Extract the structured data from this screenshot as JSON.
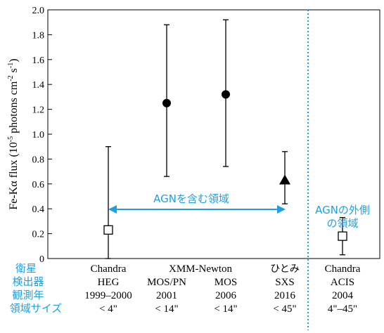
{
  "chart_data": {
    "type": "scatter",
    "ylabel_main": "Fe-Kα flux (10",
    "ylabel_exp1": "-5",
    "ylabel_mid": " photons cm",
    "ylabel_exp2": "-2",
    "ylabel_s": " s",
    "ylabel_exp3": "-1",
    "ylabel_end": ")",
    "ylim": [
      0,
      2.0
    ],
    "yticks": [
      "0",
      "0.2",
      "0.4",
      "0.6",
      "0.8",
      "1.0",
      "1.2",
      "1.4",
      "1.6",
      "1.8",
      "2.0"
    ],
    "points": [
      {
        "id": "chandra-heg",
        "value": 0.23,
        "low": 0.0,
        "high": 0.9,
        "marker": "open-square"
      },
      {
        "id": "xmm-2001",
        "value": 1.25,
        "low": 0.66,
        "high": 1.88,
        "marker": "filled-circle"
      },
      {
        "id": "xmm-2006",
        "value": 1.32,
        "low": 0.74,
        "high": 1.92,
        "marker": "filled-circle"
      },
      {
        "id": "hitomi-sxs",
        "value": 0.63,
        "low": 0.44,
        "high": 0.86,
        "marker": "filled-triangle"
      },
      {
        "id": "chandra-acis",
        "value": 0.18,
        "low": 0.03,
        "high": 0.33,
        "marker": "open-square"
      }
    ],
    "annotations": {
      "agn_region": "AGNを含む領域",
      "outside_line1": "AGNの外側",
      "outside_line2": "の領域"
    },
    "colors": {
      "accent": "#1ea0e0",
      "axis": "#000000"
    }
  },
  "table": {
    "row_labels": [
      "衛星",
      "検出器",
      "観測年",
      "領域サイズ"
    ],
    "chandra_heg": {
      "satellite": "Chandra",
      "detector": "HEG",
      "year": "1999–2000",
      "size": "< 4\""
    },
    "xmm_satellite": "XMM-Newton",
    "xmm_2001": {
      "detector": "MOS/PN",
      "year": "2001",
      "size": "< 14\""
    },
    "xmm_2006": {
      "detector": "MOS",
      "year": "2006",
      "size": "< 14\""
    },
    "hitomi": {
      "satellite": "ひとみ",
      "detector": "SXS",
      "year": "2016",
      "size": "< 45\""
    },
    "chandra_acis": {
      "satellite": "Chandra",
      "detector": "ACIS",
      "year": "2004",
      "size": "4\"–45\""
    }
  }
}
